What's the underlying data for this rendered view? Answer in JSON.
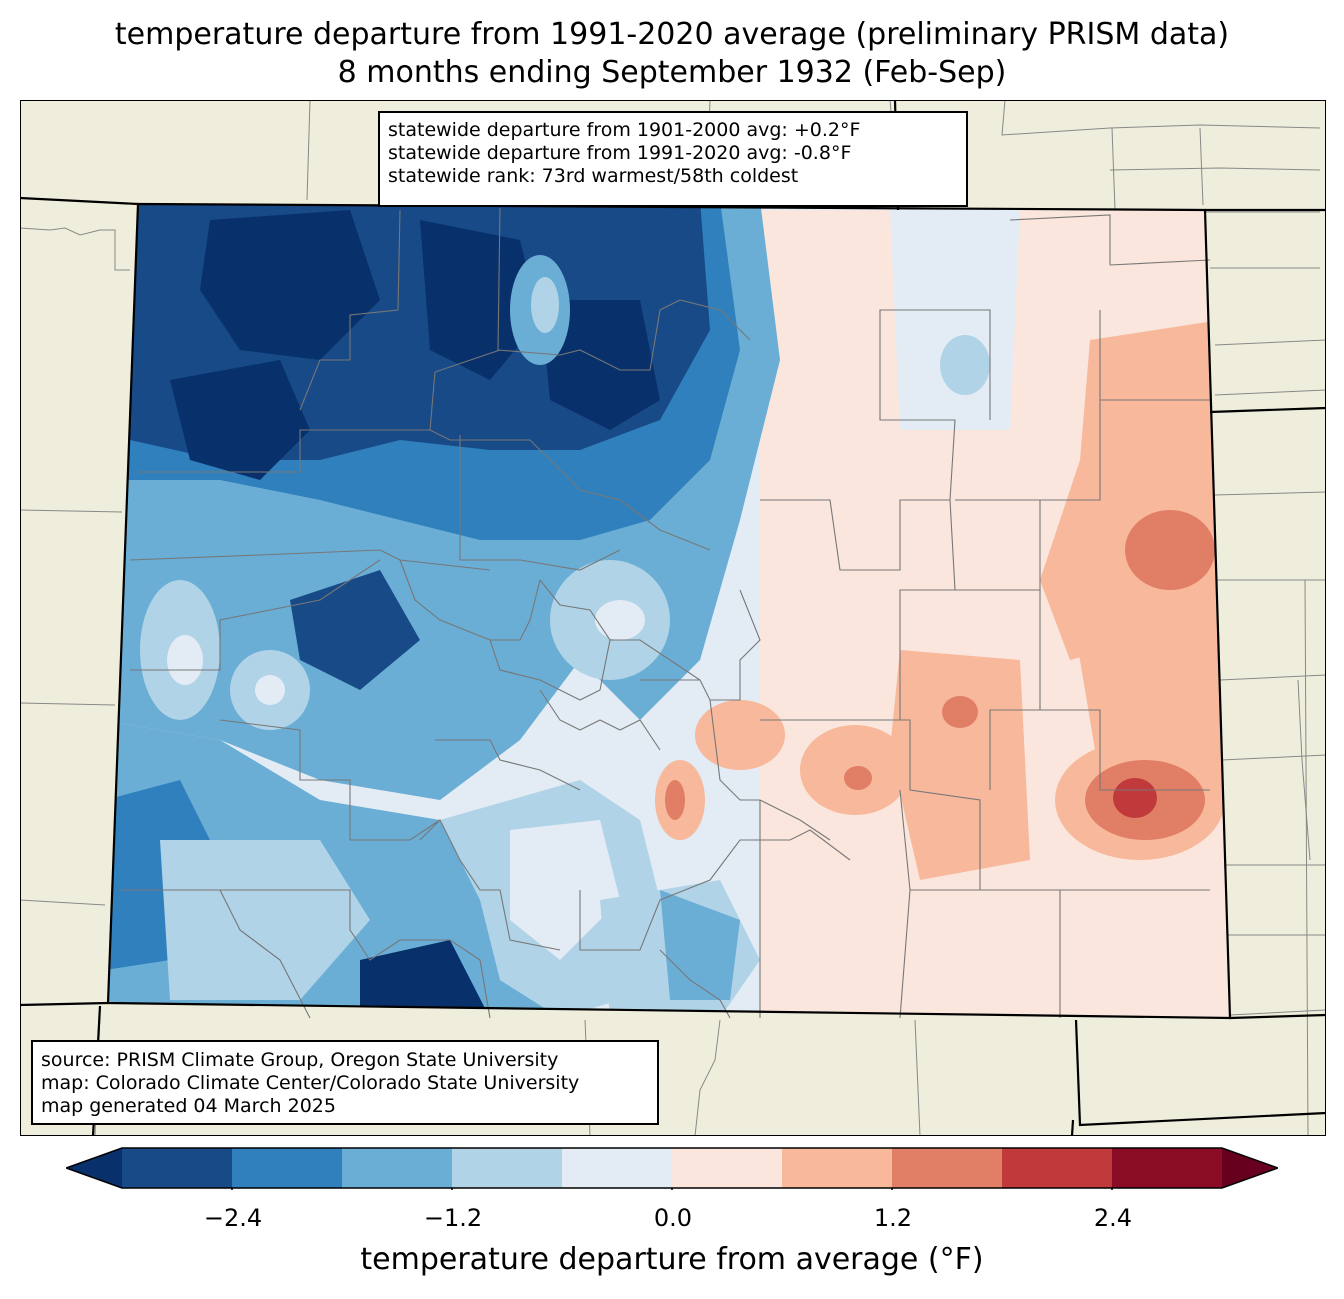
{
  "title": {
    "line1": "temperature departure from 1991-2020 average (preliminary PRISM data)",
    "line2": "8 months ending September 1932 (Feb-Sep)"
  },
  "stats": {
    "line1": "statewide departure from 1901-2000 avg: +0.2°F",
    "line2": "statewide departure from 1991-2020 avg: -0.8°F",
    "line3": "statewide rank: 73rd warmest/58th coldest"
  },
  "credits": {
    "line1": "source: PRISM Climate Group, Oregon State University",
    "line2": "map: Colorado Climate Center/Colorado State University",
    "line3": "map generated 04 March 2025"
  },
  "colorbar": {
    "label": "temperature departure from average (°F)",
    "ticks": [
      "−2.4",
      "−1.2",
      "0.0",
      "1.2",
      "2.4"
    ],
    "levels": [
      -3.0,
      -2.4,
      -1.8,
      -1.2,
      -0.6,
      0.0,
      0.6,
      1.2,
      1.8,
      2.4,
      3.0
    ],
    "colors": [
      "#08306b",
      "#174a87",
      "#3080bd",
      "#6aaed5",
      "#b0d3e7",
      "#e3ecf4",
      "#fae6dd",
      "#f7b89b",
      "#e07e66",
      "#c0393b",
      "#8b0c25",
      "#67001f"
    ]
  },
  "map": {
    "background_color": "#efeedc",
    "region": "Colorado"
  }
}
